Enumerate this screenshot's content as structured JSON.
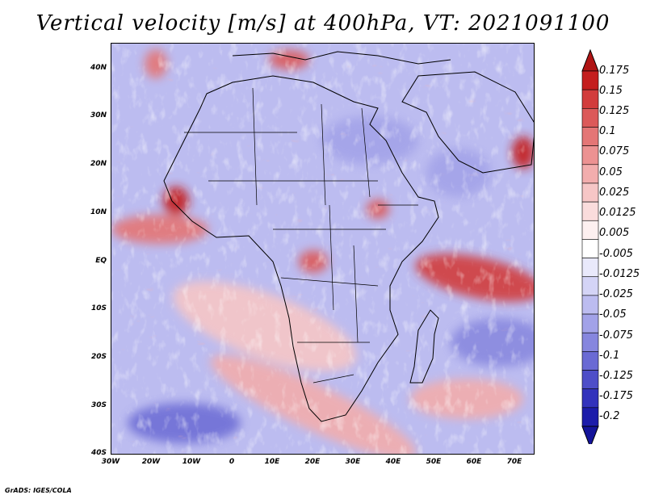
{
  "title": "Vertical velocity [m/s] at 400hPa, VT: 2021091100",
  "footer": "GrADS: IGES/COLA",
  "map": {
    "lat_labels": [
      "40N",
      "30N",
      "20N",
      "10N",
      "EQ",
      "10S",
      "20S",
      "30S",
      "40S"
    ],
    "lon_labels": [
      "30W",
      "20W",
      "10W",
      "0",
      "10E",
      "20E",
      "30E",
      "40E",
      "50E",
      "60E",
      "70E"
    ],
    "region": "Africa and surrounding oceans"
  },
  "colorbar": {
    "labels": [
      "0.175",
      "0.15",
      "0.125",
      "0.1",
      "0.075",
      "0.05",
      "0.025",
      "0.0125",
      "0.005",
      "-0.005",
      "-0.0125",
      "-0.025",
      "-0.05",
      "-0.075",
      "-0.1",
      "-0.125",
      "-0.175",
      "-0.2"
    ],
    "colors": [
      "#c41e1e",
      "#d23c3c",
      "#dc5a5a",
      "#e47676",
      "#ec9292",
      "#f2adad",
      "#f6c6c6",
      "#fadcdc",
      "#fdf0f0",
      "#ffffff",
      "#e9e9fb",
      "#d4d4f6",
      "#bcbcf0",
      "#a2a2e8",
      "#8686de",
      "#6a6ad4",
      "#4e4ec8",
      "#3232bc",
      "#1c1caa"
    ],
    "top_arrow_color": "#b01414",
    "bottom_arrow_color": "#14149a"
  }
}
